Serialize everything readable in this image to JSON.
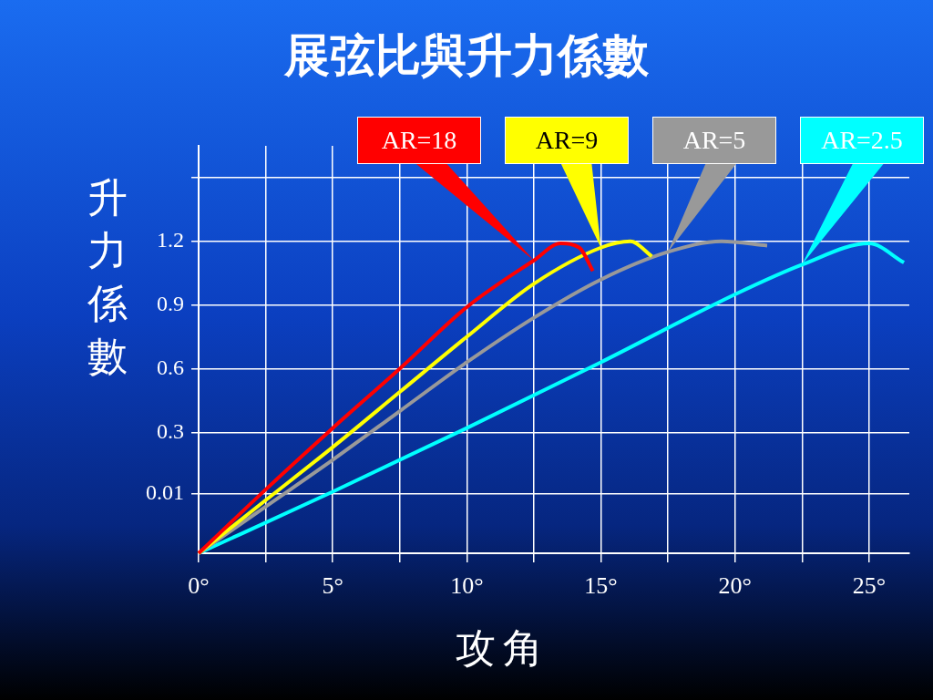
{
  "chart_data": {
    "type": "line",
    "title": "展弦比與升力係數",
    "xlabel": "攻角",
    "ylabel": "升力係數",
    "xlim": [
      0,
      26.5
    ],
    "ylim": [
      -0.27,
      1.65
    ],
    "xticks": [
      {
        "value": 0,
        "label": "0°"
      },
      {
        "value": 2.5,
        "label": null
      },
      {
        "value": 5,
        "label": "5°"
      },
      {
        "value": 7.5,
        "label": null
      },
      {
        "value": 10,
        "label": "10°"
      },
      {
        "value": 12.5,
        "label": null
      },
      {
        "value": 15,
        "label": "15°"
      },
      {
        "value": 17.5,
        "label": null
      },
      {
        "value": 20,
        "label": "20°"
      },
      {
        "value": 22.5,
        "label": null
      },
      {
        "value": 25,
        "label": "25°"
      }
    ],
    "yticks": [
      0.01,
      0.3,
      0.6,
      0.9,
      1.2,
      {
        "value": 1.5,
        "label": null
      }
    ],
    "grid": true,
    "legend": "top right",
    "marker": "none",
    "line_style": "solid",
    "series": [
      {
        "name": "AR=18",
        "color": "#ff0000",
        "x": [
          0,
          2.5,
          5,
          7.5,
          10,
          12.5,
          13.5,
          14.2,
          14.7
        ],
        "values": [
          -0.27,
          0.03,
          0.32,
          0.6,
          0.89,
          1.11,
          1.19,
          1.17,
          1.06
        ]
      },
      {
        "name": "AR=9",
        "color": "#ffff00",
        "x": [
          0,
          2.5,
          5,
          7.5,
          10,
          12.5,
          15,
          16.1,
          16.9
        ],
        "values": [
          -0.27,
          -0.02,
          0.23,
          0.49,
          0.75,
          1.0,
          1.17,
          1.2,
          1.13
        ]
      },
      {
        "name": "AR=5",
        "color": "#999999",
        "x": [
          0,
          2.5,
          5,
          7.5,
          10,
          12.5,
          15,
          17.5,
          19.5,
          21.2
        ],
        "values": [
          -0.27,
          -0.05,
          0.17,
          0.4,
          0.63,
          0.84,
          1.02,
          1.15,
          1.2,
          1.18
        ]
      },
      {
        "name": "AR=2.5",
        "color": "#00ffff",
        "x": [
          0,
          5,
          10,
          15,
          20,
          22.5,
          25,
          26.3
        ],
        "values": [
          -0.27,
          0.02,
          0.32,
          0.63,
          0.95,
          1.09,
          1.19,
          1.1
        ]
      }
    ]
  }
}
